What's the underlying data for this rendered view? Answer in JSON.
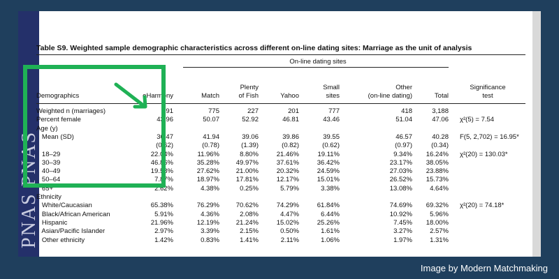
{
  "spine_text": "PNAS PNAS",
  "credit": "Image by Modern Matchmaking",
  "table": {
    "title": "Table S9.   Weighted sample demographic characteristics across different on-line dating sites: Marriage as the unit of analysis",
    "span_header": "On-line dating sites",
    "headers": {
      "demographics": "Demographics",
      "eharmony": "eHarmony",
      "match": "Match",
      "plenty1": "Plenty",
      "plenty2": "of Fish",
      "yahoo": "Yahoo",
      "small1": "Small",
      "small2": "sites",
      "other1": "Other",
      "other2": "(on-line dating)",
      "total": "Total",
      "sig1": "Significance",
      "sig2": "test"
    },
    "rows": [
      {
        "label": "Weighted n (marriages)",
        "eh": "791",
        "ma": "775",
        "pf": "227",
        "ya": "201",
        "sm": "777",
        "ot": "418",
        "to": "3,188",
        "sig": ""
      },
      {
        "label": "Percent female",
        "eh": "43.96",
        "ma": "50.07",
        "pf": "52.92",
        "ya": "46.81",
        "sm": "43.46",
        "ot": "51.04",
        "to": "47.06",
        "sig": "χ²(5) = 7.54"
      },
      {
        "label": "Age (y)",
        "eh": "",
        "ma": "",
        "pf": "",
        "ya": "",
        "sm": "",
        "ot": "",
        "to": "",
        "sig": ""
      },
      {
        "label": "   Mean (SD)",
        "eh": "36.47",
        "ma": "41.94",
        "pf": "39.06",
        "ya": "39.86",
        "sm": "39.55",
        "ot": "46.57",
        "to": "40.28",
        "sig": "F(5, 2,702) = 16.95*"
      },
      {
        "label": "",
        "eh": "(0.62)",
        "ma": "(0.78)",
        "pf": "(1.39)",
        "ya": "(0.82)",
        "sm": "(0.62)",
        "ot": "(0.97)",
        "to": "(0.34)",
        "sig": ""
      },
      {
        "label": "   18–29",
        "eh": "22.04%",
        "ma": "11.96%",
        "pf": "8.80%",
        "ya": "21.46%",
        "sm": "19.11%",
        "ot": "9.34%",
        "to": "16.24%",
        "sig": "χ²(20) = 130.03*"
      },
      {
        "label": "   30–39",
        "eh": "46.86%",
        "ma": "35.28%",
        "pf": "49.97%",
        "ya": "37.61%",
        "sm": "36.42%",
        "ot": "23.17%",
        "to": "38.05%",
        "sig": ""
      },
      {
        "label": "   40–49",
        "eh": "19.58%",
        "ma": "27.62%",
        "pf": "21.00%",
        "ya": "20.32%",
        "sm": "24.59%",
        "ot": "27.03%",
        "to": "23.88%",
        "sig": ""
      },
      {
        "label": "   50–64",
        "eh": "7.87%",
        "ma": "18.97%",
        "pf": "17.81%",
        "ya": "12.17%",
        "sm": "15.01%",
        "ot": "26.52%",
        "to": "15.73%",
        "sig": ""
      },
      {
        "label": "   65+",
        "eh": "2.62%",
        "ma": "4.38%",
        "pf": "0.25%",
        "ya": "5.79%",
        "sm": "3.38%",
        "ot": "13.08%",
        "to": "4.64%",
        "sig": ""
      },
      {
        "label": "Ethnicity",
        "eh": "",
        "ma": "",
        "pf": "",
        "ya": "",
        "sm": "",
        "ot": "",
        "to": "",
        "sig": ""
      },
      {
        "label": "   White/Caucasian",
        "eh": "65.38%",
        "ma": "76.29%",
        "pf": "70.62%",
        "ya": "74.29%",
        "sm": "61.84%",
        "ot": "74.69%",
        "to": "69.32%",
        "sig": "χ²(20) = 74.18*"
      },
      {
        "label": "   Black/African American",
        "eh": "5.91%",
        "ma": "4.36%",
        "pf": "2.08%",
        "ya": "4.47%",
        "sm": "6.44%",
        "ot": "10.92%",
        "to": "5.96%",
        "sig": ""
      },
      {
        "label": "   Hispanic",
        "eh": "21.96%",
        "ma": "12.19%",
        "pf": "21.24%",
        "ya": "15.02%",
        "sm": "25.26%",
        "ot": "7.45%",
        "to": "18.00%",
        "sig": ""
      },
      {
        "label": "   Asian/Pacific Islander",
        "eh": "2.97%",
        "ma": "3.39%",
        "pf": "2.15%",
        "ya": "0.50%",
        "sm": "1.61%",
        "ot": "3.27%",
        "to": "2.57%",
        "sig": ""
      },
      {
        "label": "   Other ethnicity",
        "eh": "1.42%",
        "ma": "0.83%",
        "pf": "1.41%",
        "ya": "2.11%",
        "sm": "1.06%",
        "ot": "1.97%",
        "to": "1.31%",
        "sig": ""
      }
    ]
  },
  "colors": {
    "background": "#1f3f5d",
    "highlight": "#1fb155",
    "spine": "#24306a"
  }
}
